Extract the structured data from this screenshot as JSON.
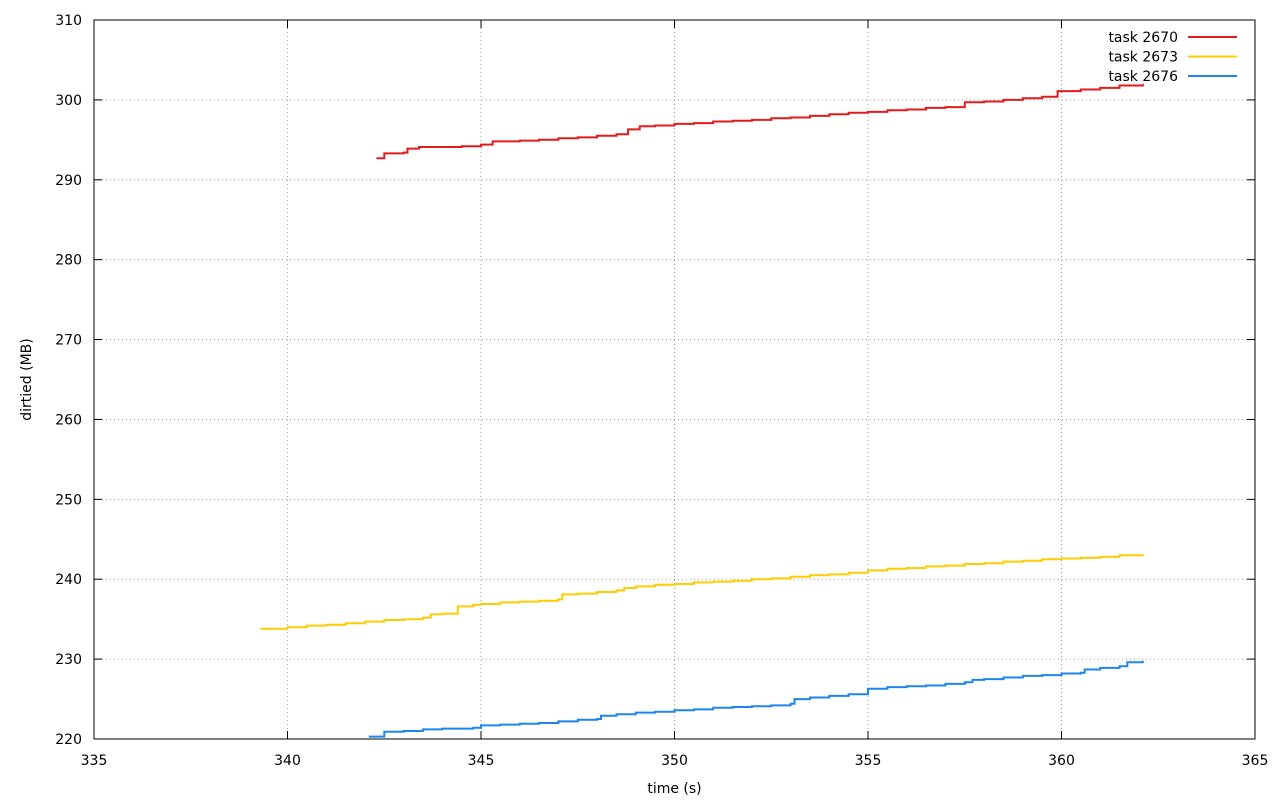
{
  "chart_data": {
    "type": "line",
    "title": "",
    "xlabel": "time (s)",
    "ylabel": "dirtied (MB)",
    "xlim": [
      335,
      365
    ],
    "ylim": [
      220,
      310
    ],
    "xticks": [
      335,
      340,
      345,
      350,
      355,
      360,
      365
    ],
    "yticks": [
      220,
      230,
      240,
      250,
      260,
      270,
      280,
      290,
      300,
      310
    ],
    "grid": true,
    "legend_position": "top-right",
    "series": [
      {
        "name": "task 2670",
        "color": "#e41a1c",
        "points": [
          [
            342.3,
            292.7
          ],
          [
            342.5,
            293.3
          ],
          [
            343.0,
            293.4
          ],
          [
            343.1,
            293.9
          ],
          [
            343.4,
            294.1
          ],
          [
            344.0,
            294.1
          ],
          [
            344.5,
            294.2
          ],
          [
            345.0,
            294.4
          ],
          [
            345.3,
            294.8
          ],
          [
            346.0,
            294.9
          ],
          [
            346.5,
            295.0
          ],
          [
            347.0,
            295.2
          ],
          [
            347.5,
            295.3
          ],
          [
            348.0,
            295.5
          ],
          [
            348.5,
            295.7
          ],
          [
            348.8,
            296.3
          ],
          [
            349.1,
            296.7
          ],
          [
            349.5,
            296.8
          ],
          [
            350.0,
            297.0
          ],
          [
            350.5,
            297.1
          ],
          [
            351.0,
            297.3
          ],
          [
            351.5,
            297.4
          ],
          [
            352.0,
            297.5
          ],
          [
            352.5,
            297.7
          ],
          [
            353.0,
            297.8
          ],
          [
            353.5,
            298.0
          ],
          [
            354.0,
            298.2
          ],
          [
            354.5,
            298.4
          ],
          [
            355.0,
            298.5
          ],
          [
            355.5,
            298.7
          ],
          [
            356.0,
            298.8
          ],
          [
            356.5,
            299.0
          ],
          [
            357.0,
            299.1
          ],
          [
            357.5,
            299.7
          ],
          [
            358.0,
            299.8
          ],
          [
            358.5,
            300.0
          ],
          [
            359.0,
            300.2
          ],
          [
            359.5,
            300.4
          ],
          [
            359.9,
            301.1
          ],
          [
            360.5,
            301.3
          ],
          [
            361.0,
            301.5
          ],
          [
            361.5,
            301.8
          ],
          [
            362.1,
            302.0
          ]
        ]
      },
      {
        "name": "task 2673",
        "color": "#ffcc00",
        "points": [
          [
            339.3,
            233.8
          ],
          [
            340.0,
            234.0
          ],
          [
            340.5,
            234.2
          ],
          [
            341.0,
            234.3
          ],
          [
            341.5,
            234.5
          ],
          [
            342.0,
            234.7
          ],
          [
            342.5,
            234.9
          ],
          [
            343.0,
            235.0
          ],
          [
            343.5,
            235.2
          ],
          [
            343.7,
            235.6
          ],
          [
            344.0,
            235.7
          ],
          [
            344.4,
            236.6
          ],
          [
            344.8,
            236.8
          ],
          [
            345.0,
            236.9
          ],
          [
            345.5,
            237.1
          ],
          [
            346.0,
            237.2
          ],
          [
            346.5,
            237.3
          ],
          [
            347.0,
            237.5
          ],
          [
            347.1,
            238.1
          ],
          [
            347.5,
            238.2
          ],
          [
            348.0,
            238.4
          ],
          [
            348.5,
            238.6
          ],
          [
            348.7,
            238.9
          ],
          [
            349.0,
            239.1
          ],
          [
            349.5,
            239.3
          ],
          [
            350.0,
            239.4
          ],
          [
            350.5,
            239.6
          ],
          [
            351.0,
            239.7
          ],
          [
            351.5,
            239.8
          ],
          [
            352.0,
            240.0
          ],
          [
            352.5,
            240.1
          ],
          [
            353.0,
            240.3
          ],
          [
            353.5,
            240.5
          ],
          [
            354.0,
            240.6
          ],
          [
            354.5,
            240.8
          ],
          [
            355.0,
            241.1
          ],
          [
            355.5,
            241.3
          ],
          [
            356.0,
            241.4
          ],
          [
            356.5,
            241.6
          ],
          [
            357.0,
            241.7
          ],
          [
            357.5,
            241.9
          ],
          [
            358.0,
            242.0
          ],
          [
            358.5,
            242.2
          ],
          [
            359.0,
            242.3
          ],
          [
            359.5,
            242.5
          ],
          [
            360.0,
            242.6
          ],
          [
            360.5,
            242.7
          ],
          [
            361.0,
            242.8
          ],
          [
            361.5,
            243.0
          ],
          [
            362.1,
            243.1
          ]
        ]
      },
      {
        "name": "task 2676",
        "color": "#1c86ee",
        "points": [
          [
            342.1,
            220.3
          ],
          [
            342.5,
            220.9
          ],
          [
            343.0,
            221.0
          ],
          [
            343.5,
            221.2
          ],
          [
            344.0,
            221.3
          ],
          [
            344.8,
            221.4
          ],
          [
            345.0,
            221.7
          ],
          [
            345.5,
            221.8
          ],
          [
            346.0,
            221.9
          ],
          [
            346.5,
            222.0
          ],
          [
            347.0,
            222.2
          ],
          [
            347.5,
            222.4
          ],
          [
            348.0,
            222.5
          ],
          [
            348.1,
            222.9
          ],
          [
            348.5,
            223.1
          ],
          [
            349.0,
            223.3
          ],
          [
            349.5,
            223.4
          ],
          [
            350.0,
            223.6
          ],
          [
            350.5,
            223.7
          ],
          [
            351.0,
            223.9
          ],
          [
            351.5,
            224.0
          ],
          [
            352.0,
            224.1
          ],
          [
            352.5,
            224.2
          ],
          [
            353.0,
            224.4
          ],
          [
            353.1,
            225.0
          ],
          [
            353.5,
            225.2
          ],
          [
            354.0,
            225.4
          ],
          [
            354.5,
            225.6
          ],
          [
            355.0,
            225.8
          ],
          [
            355.0,
            226.3
          ],
          [
            355.5,
            226.5
          ],
          [
            356.0,
            226.6
          ],
          [
            356.5,
            226.7
          ],
          [
            357.0,
            226.9
          ],
          [
            357.5,
            227.1
          ],
          [
            357.7,
            227.4
          ],
          [
            358.0,
            227.5
          ],
          [
            358.5,
            227.7
          ],
          [
            359.0,
            227.9
          ],
          [
            359.5,
            228.0
          ],
          [
            360.0,
            228.2
          ],
          [
            360.5,
            228.3
          ],
          [
            360.6,
            228.7
          ],
          [
            361.0,
            228.9
          ],
          [
            361.5,
            229.1
          ],
          [
            361.7,
            229.6
          ],
          [
            362.1,
            229.8
          ]
        ]
      }
    ]
  }
}
